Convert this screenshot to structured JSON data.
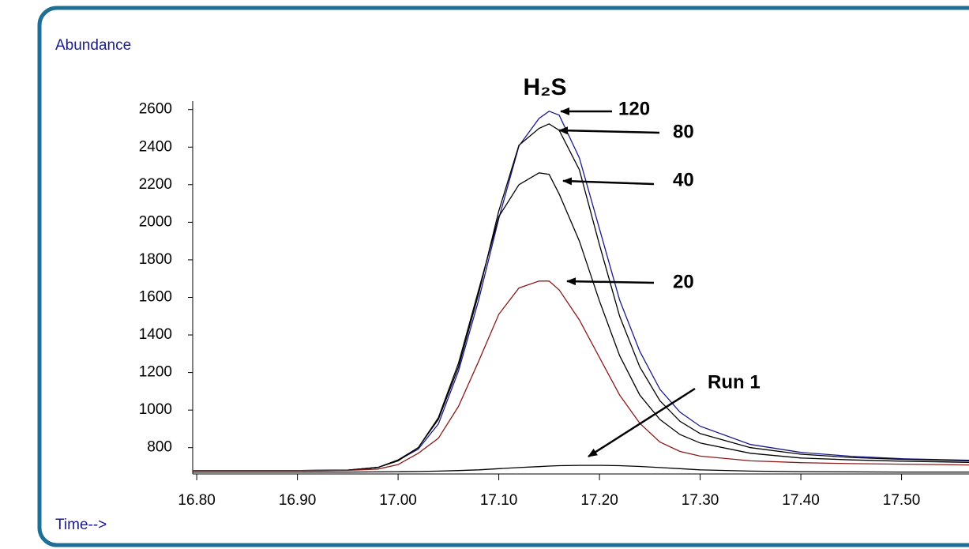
{
  "chart_data": {
    "type": "line",
    "title": "H₂S",
    "y_label": "Abundance",
    "x_label": "Time-->",
    "x": [
      16.796,
      16.85,
      16.9,
      16.95,
      16.98,
      17.0,
      17.02,
      17.04,
      17.06,
      17.08,
      17.1,
      17.12,
      17.14,
      17.15,
      17.16,
      17.18,
      17.2,
      17.22,
      17.24,
      17.26,
      17.28,
      17.3,
      17.35,
      17.4,
      17.45,
      17.5,
      17.567
    ],
    "series": [
      {
        "name": "120",
        "color": "#1a1a8c",
        "values": [
          678,
          678,
          678,
          680,
          695,
          733,
          792,
          926,
          1208,
          1586,
          2020,
          2406,
          2553,
          2591,
          2570,
          2343,
          1965,
          1586,
          1313,
          1111,
          989,
          914,
          817,
          775,
          754,
          741,
          733
        ]
      },
      {
        "name": "80",
        "color": "#000000",
        "values": [
          678,
          678,
          678,
          680,
          695,
          735,
          800,
          950,
          1230,
          1620,
          2060,
          2410,
          2500,
          2524,
          2490,
          2280,
          1880,
          1500,
          1230,
          1050,
          940,
          875,
          800,
          765,
          748,
          738,
          730
        ]
      },
      {
        "name": "40",
        "color": "#000000",
        "values": [
          678,
          678,
          678,
          680,
          695,
          730,
          800,
          960,
          1250,
          1640,
          2030,
          2200,
          2263,
          2255,
          2150,
          1900,
          1580,
          1290,
          1080,
          950,
          870,
          825,
          770,
          745,
          735,
          728,
          722
        ]
      },
      {
        "name": "20",
        "color": "#8b1a1a",
        "values": [
          678,
          678,
          678,
          679,
          686,
          710,
          770,
          850,
          1020,
          1260,
          1510,
          1650,
          1687,
          1687,
          1640,
          1480,
          1280,
          1080,
          930,
          830,
          780,
          755,
          730,
          720,
          715,
          712,
          708
        ]
      },
      {
        "name": "Run 1",
        "color": "#000000",
        "values": [
          670,
          670,
          670,
          670,
          671,
          672,
          673,
          675,
          678,
          682,
          688,
          694,
          699,
          702,
          704,
          706,
          706,
          704,
          700,
          694,
          688,
          682,
          675,
          672,
          671,
          670,
          670
        ]
      }
    ],
    "xlim": [
      16.796,
      17.567
    ],
    "ylim": [
      660,
      2645
    ],
    "xticks": [
      {
        "value": 16.8,
        "label": "16.80"
      },
      {
        "value": 16.9,
        "label": "16.90"
      },
      {
        "value": 17.0,
        "label": "17.00"
      },
      {
        "value": 17.1,
        "label": "17.10"
      },
      {
        "value": 17.2,
        "label": "17.20"
      },
      {
        "value": 17.3,
        "label": "17.30"
      },
      {
        "value": 17.4,
        "label": "17.40"
      },
      {
        "value": 17.5,
        "label": "17.50"
      }
    ],
    "yticks": [
      800,
      1000,
      1200,
      1400,
      1600,
      1800,
      2000,
      2200,
      2400,
      2600
    ],
    "grid": false
  }
}
